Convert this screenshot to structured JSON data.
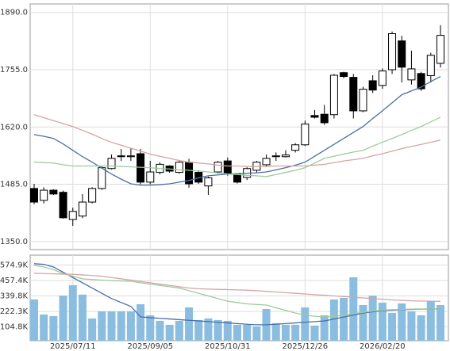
{
  "chart_data": [
    {
      "type": "candlestick",
      "open": [
        1475,
        1447,
        1471,
        1466,
        1402,
        1410,
        1443,
        1475,
        1522,
        1552,
        1550,
        1557,
        1490,
        1513,
        1528,
        1513,
        1537,
        1513,
        1481,
        1514,
        1540,
        1509,
        1501,
        1518,
        1531,
        1550,
        1550,
        1565,
        1578,
        1647,
        1650,
        1649,
        1748,
        1737,
        1658,
        1729,
        1718,
        1755,
        1823,
        1731,
        1746,
        1741,
        1770
      ],
      "high": [
        1486,
        1478,
        1473,
        1470,
        1430,
        1462,
        1478,
        1527,
        1555,
        1568,
        1570,
        1568,
        1540,
        1537,
        1530,
        1540,
        1545,
        1518,
        1503,
        1540,
        1548,
        1511,
        1525,
        1540,
        1555,
        1560,
        1565,
        1582,
        1635,
        1660,
        1672,
        1745,
        1750,
        1745,
        1715,
        1742,
        1758,
        1845,
        1835,
        1800,
        1750,
        1795,
        1860
      ],
      "low": [
        1438,
        1440,
        1460,
        1404,
        1387,
        1405,
        1440,
        1472,
        1520,
        1540,
        1540,
        1485,
        1485,
        1508,
        1512,
        1510,
        1477,
        1486,
        1460,
        1510,
        1505,
        1487,
        1495,
        1512,
        1528,
        1540,
        1548,
        1560,
        1575,
        1640,
        1625,
        1640,
        1735,
        1640,
        1655,
        1700,
        1710,
        1745,
        1725,
        1720,
        1705,
        1725,
        1760
      ],
      "close": [
        1443,
        1471,
        1462,
        1406,
        1421,
        1443,
        1475,
        1524,
        1546,
        1550,
        1552,
        1490,
        1514,
        1532,
        1516,
        1537,
        1486,
        1490,
        1500,
        1537,
        1509,
        1490,
        1522,
        1537,
        1546,
        1552,
        1554,
        1578,
        1627,
        1643,
        1630,
        1742,
        1739,
        1658,
        1709,
        1707,
        1752,
        1840,
        1761,
        1757,
        1710,
        1789,
        1836
      ],
      "lines": [
        {
          "color": "#4a6fa5",
          "values": [
            1602,
            1598,
            1593,
            1580,
            1565,
            1550,
            1537,
            1523,
            1509,
            1497,
            1486,
            1483,
            1483,
            1484,
            1486,
            1490,
            1494,
            1500,
            1505,
            1507,
            1509,
            1510,
            1511,
            1512,
            1514,
            1519,
            1524,
            1530,
            1537,
            1551,
            1565,
            1579,
            1593,
            1607,
            1621,
            1640,
            1658,
            1677,
            1696,
            1705,
            1714,
            1727,
            1739
          ]
        },
        {
          "color": "#9ccc9c",
          "values": [
            1537,
            1536,
            1535,
            1531,
            1528,
            1528,
            1528,
            1528,
            1528,
            1527,
            1526,
            1525,
            1524,
            1522,
            1521,
            1519,
            1518,
            1516,
            1514,
            1512,
            1509,
            1508,
            1506,
            1505,
            1503,
            1508,
            1513,
            1518,
            1524,
            1535,
            1546,
            1551,
            1556,
            1561,
            1565,
            1575,
            1584,
            1593,
            1602,
            1612,
            1621,
            1632,
            1643
          ]
        },
        {
          "color": "#d4a5a5",
          "values": [
            1649,
            1642,
            1635,
            1628,
            1621,
            1612,
            1603,
            1593,
            1584,
            1577,
            1570,
            1563,
            1556,
            1551,
            1546,
            1541,
            1537,
            1535,
            1533,
            1530,
            1528,
            1528,
            1527,
            1527,
            1527,
            1528,
            1528,
            1528,
            1528,
            1530,
            1532,
            1536,
            1540,
            1543,
            1546,
            1552,
            1557,
            1563,
            1569,
            1574,
            1579,
            1584,
            1589
          ]
        }
      ],
      "ylim": [
        1331,
        1910
      ],
      "yticks": [
        {
          "value": 1350,
          "label": "1350.0"
        },
        {
          "value": 1485,
          "label": "1485.0"
        },
        {
          "value": 1620,
          "label": "1620.0"
        },
        {
          "value": 1755,
          "label": "1755.0"
        },
        {
          "value": 1890,
          "label": "1890.0"
        }
      ],
      "grid": true
    },
    {
      "type": "bar",
      "categories": [
        null,
        null,
        null,
        null,
        "2025/07/11",
        null,
        null,
        null,
        null,
        null,
        null,
        null,
        "2025/09/05",
        null,
        null,
        null,
        null,
        null,
        null,
        null,
        "2025/10/31",
        null,
        null,
        null,
        null,
        null,
        null,
        null,
        "2025/12/26",
        null,
        null,
        null,
        null,
        null,
        null,
        null,
        "2026/02/20",
        null,
        null,
        null,
        null,
        null,
        null
      ],
      "values": [
        313,
        199,
        187,
        343,
        422,
        350,
        169,
        223,
        223,
        223,
        223,
        277,
        193,
        151,
        121,
        151,
        253,
        157,
        169,
        157,
        151,
        121,
        121,
        109,
        241,
        133,
        121,
        121,
        253,
        115,
        193,
        313,
        325,
        482,
        271,
        343,
        289,
        211,
        283,
        223,
        193,
        301,
        271
      ],
      "color": "#8bbde0",
      "lines": [
        {
          "color": "#4a6fa5",
          "values": [
            585,
            580,
            560,
            520,
            480,
            440,
            400,
            360,
            320,
            290,
            260,
            181,
            175,
            170,
            165,
            160,
            155,
            150,
            145,
            140,
            135,
            130,
            125,
            121,
            121,
            125,
            130,
            135,
            140,
            145,
            150,
            165,
            180,
            195,
            210,
            220,
            228,
            232,
            236,
            238,
            240,
            241,
            241
          ]
        },
        {
          "color": "#9ccc9c",
          "values": [
            573,
            560,
            540,
            510,
            490,
            470,
            465,
            460,
            456,
            454,
            452,
            440,
            430,
            420,
            410,
            400,
            380,
            360,
            340,
            320,
            300,
            290,
            280,
            275,
            271,
            250,
            230,
            210,
            195,
            185,
            181,
            185,
            195,
            205,
            215,
            225,
            232,
            236,
            238,
            240,
            241,
            241,
            241
          ]
        },
        {
          "color": "#d4a5a5",
          "values": [
            512,
            510,
            508,
            506,
            504,
            500,
            495,
            490,
            480,
            470,
            460,
            450,
            440,
            430,
            420,
            410,
            400,
            395,
            392,
            390,
            388,
            386,
            384,
            380,
            375,
            370,
            365,
            360,
            355,
            350,
            345,
            340,
            335,
            330,
            325,
            320,
            315,
            310,
            306,
            303,
            301,
            300,
            299
          ]
        }
      ],
      "ylim": [
        0,
        650
      ],
      "yticks": [
        {
          "value": 104.8,
          "label": "104.8K"
        },
        {
          "value": 222.3,
          "label": "222.3K"
        },
        {
          "value": 339.8,
          "label": "339.8K"
        },
        {
          "value": 457.4,
          "label": "457.4K"
        },
        {
          "value": 574.9,
          "label": "574.9K"
        }
      ],
      "grid": true
    }
  ]
}
